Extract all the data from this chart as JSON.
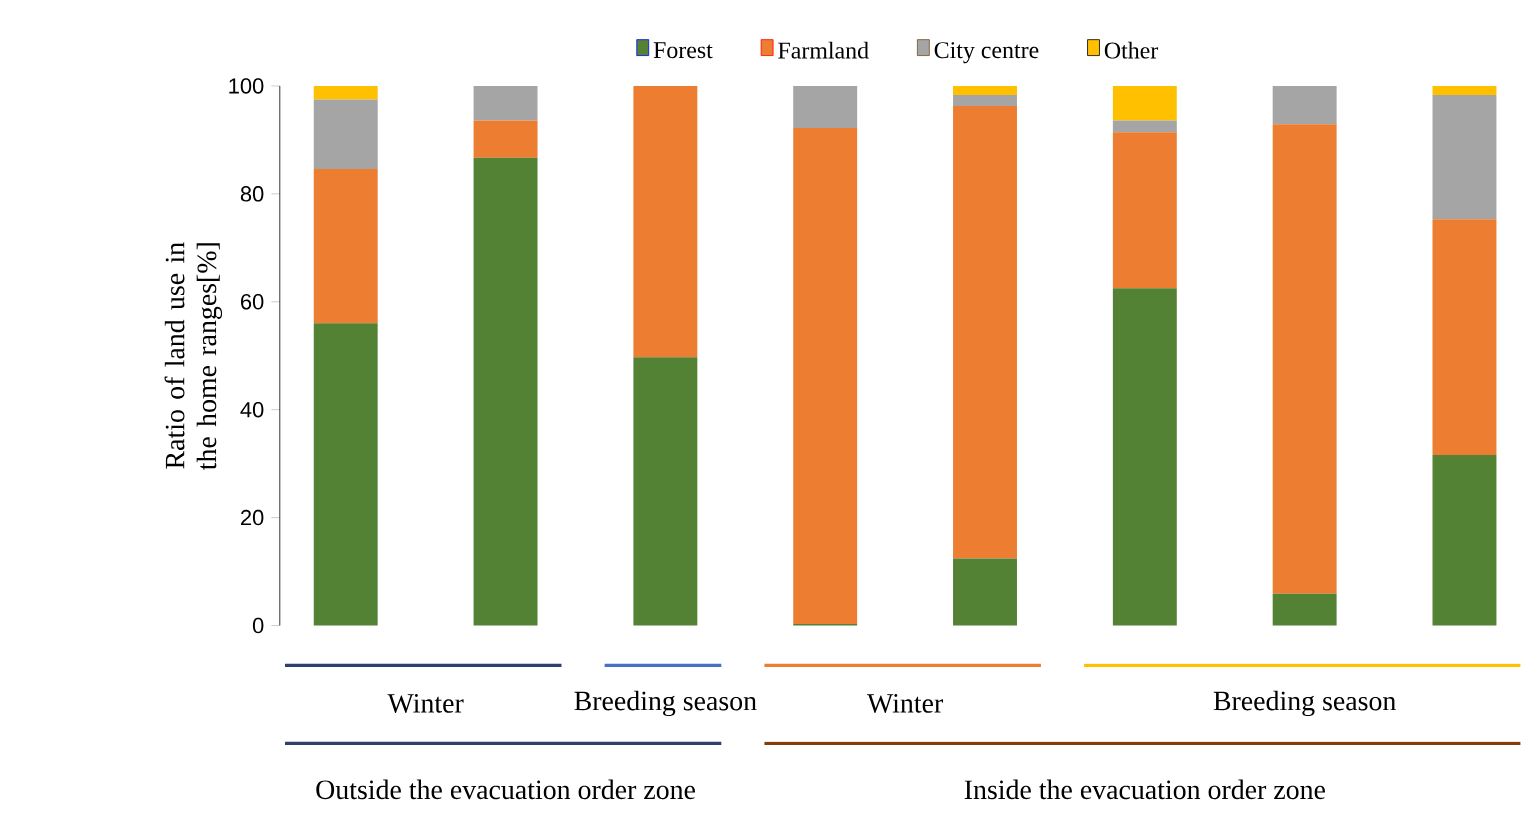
{
  "chart_data": {
    "type": "bar",
    "stacked": true,
    "ylabel": "Ratio of land use in the home ranges[%]",
    "categories": [
      null,
      null,
      null,
      null,
      null,
      null,
      null,
      null
    ],
    "series": [
      {
        "name": "Forest",
        "color": "#548235",
        "values": [
          56,
          86.7,
          49.7,
          0.3,
          12.4,
          62.5,
          5.9,
          31.6
        ]
      },
      {
        "name": "Farmland",
        "color": "#ed7d31",
        "values": [
          28.6,
          6.9,
          50.3,
          91.9,
          83.9,
          28.9,
          87,
          43.7
        ]
      },
      {
        "name": "City centre",
        "color": "#a5a5a5",
        "values": [
          12.9,
          6.4,
          0,
          7.8,
          2,
          2.2,
          7.1,
          23
        ]
      },
      {
        "name": "Other",
        "color": "#ffc000",
        "values": [
          2.5,
          0,
          0,
          0,
          1.7,
          6.4,
          0,
          1.7
        ]
      }
    ],
    "ylim": [
      0,
      100
    ],
    "yticks": [
      0,
      20,
      40,
      60,
      80,
      100
    ],
    "legend": "top",
    "annotations": [
      "Winter",
      "Breeding season",
      "Winter",
      "Breeding season",
      "Outside the evacuation order zone",
      "Inside the evacuation order zone"
    ]
  }
}
